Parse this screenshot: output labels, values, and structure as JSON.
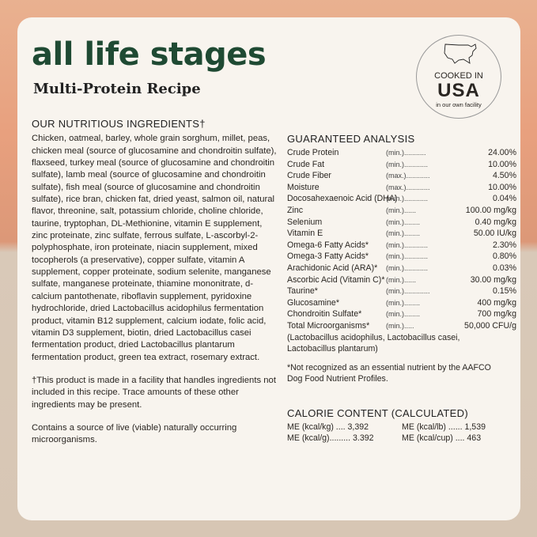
{
  "title": "all life stages",
  "subtitle": "Multi-Protein Recipe",
  "badge": {
    "icon": "usa-map-icon",
    "line1": "COOKED IN",
    "line2": "USA",
    "line3": "in our own facility"
  },
  "ingredients": {
    "heading": "OUR NUTRITIOUS INGREDIENTS†",
    "text": "Chicken, oatmeal, barley, whole grain sorghum, millet, peas, chicken meal (source of glucosamine and chondroitin sulfate), flaxseed, turkey meal (source of glucosamine and chondroitin sulfate), lamb meal (source of glucosamine and chondroitin sulfate), fish meal (source of glucosamine and chondroitin sulfate), rice bran, chicken fat, dried yeast, salmon oil, natural flavor, threonine, salt, potassium chloride, choline chloride, taurine, tryptophan, DL-Methionine, vitamin E supplement, zinc proteinate, zinc sulfate, ferrous sulfate, L-ascorbyl-2-polyphosphate, iron proteinate, niacin supplement, mixed tocopherols (a preservative), copper sulfate, vitamin A supplement, copper proteinate, sodium selenite, manganese sulfate, manganese proteinate, thiamine mononitrate, d-calcium pantothenate, riboflavin supplement, pyridoxine hydrochloride, dried Lactobacillus acidophilus fermentation product, vitamin B12 supplement, calcium iodate, folic acid, vitamin D3 supplement, biotin, dried Lactobacillus casei fermentation product, dried Lactobacillus plantarum fermentation product, green tea extract, rosemary extract.",
    "footnote": "†This product is made in a facility that handles ingredients not included in this recipe. Trace amounts of these other ingredients may be present.",
    "live": "Contains a source of live (viable) naturally occurring microorganisms."
  },
  "analysis": {
    "heading": "GUARANTEED ANALYSIS",
    "rows": [
      {
        "name": "Crude Protein",
        "qual": "(min.)...........",
        "value": "24.00%"
      },
      {
        "name": "Crude Fat",
        "qual": "(min.)............",
        "value": "10.00%"
      },
      {
        "name": "Crude Fiber",
        "qual": "(max.)............",
        "value": "4.50%"
      },
      {
        "name": "Moisture",
        "qual": "(max.)............",
        "value": "10.00%"
      },
      {
        "name": "Docosahexaenoic Acid (DHA)",
        "qual": "(min.)............",
        "value": "0.04%"
      },
      {
        "name": "Zinc",
        "qual": "(min.)......",
        "value": "100.00 mg/kg"
      },
      {
        "name": "Selenium",
        "qual": "(min.)........",
        "value": "0.40 mg/kg"
      },
      {
        "name": "Vitamin E",
        "qual": "(min.)........",
        "value": "50.00 IU/kg"
      },
      {
        "name": "Omega-6 Fatty Acids*",
        "qual": "(min.)............",
        "value": "2.30%"
      },
      {
        "name": "Omega-3 Fatty Acids*",
        "qual": "(min.)............",
        "value": "0.80%"
      },
      {
        "name": "Arachidonic Acid (ARA)*",
        "qual": "(min.)............",
        "value": "0.03%"
      },
      {
        "name": "Ascorbic Acid (Vitamin C)*",
        "qual": "(min.)......",
        "value": "30.00 mg/kg"
      },
      {
        "name": "Taurine*",
        "qual": "(min.).............",
        "value": "0.15%"
      },
      {
        "name": "Glucosamine*",
        "qual": "(min.)........",
        "value": "400 mg/kg"
      },
      {
        "name": "Chondroitin Sulfate*",
        "qual": "(min.)........",
        "value": "700 mg/kg"
      },
      {
        "name": "Total Microorganisms*",
        "qual": "(min.).....",
        "value": "50,000 CFU/g"
      }
    ],
    "strains": "(Lactobacillus acidophilus, Lactobacillus casei, Lactobacillus plantarum)",
    "note": "*Not recognized as an essential nutrient by the AAFCO Dog Food Nutrient Profiles."
  },
  "calorie": {
    "heading": "CALORIE CONTENT (CALCULATED)",
    "items": [
      "ME (kcal/kg) .... 3,392",
      "ME (kcal/lb) ...... 1,539",
      "ME (kcal/g)......... 3.392",
      "ME (kcal/cup) .... 463"
    ]
  },
  "colors": {
    "title": "#1f4a33",
    "card": "#f8f4ee",
    "background_top": "#e8a07e",
    "background_bottom": "#d7c6b4"
  }
}
